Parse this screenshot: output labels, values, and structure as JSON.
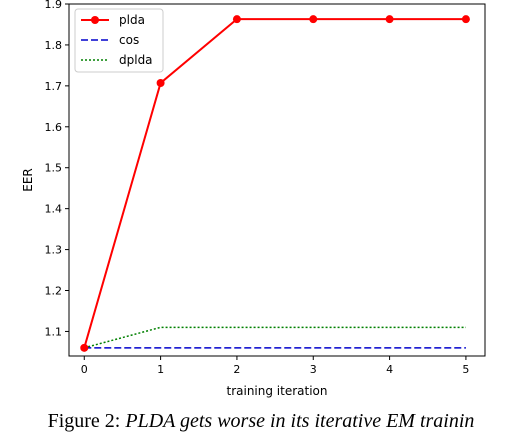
{
  "chart_data": {
    "type": "line",
    "xlabel": "training iteration",
    "ylabel": "EER",
    "x": [
      0,
      1,
      2,
      3,
      4,
      5
    ],
    "xlim": [
      -0.2,
      5.25
    ],
    "ylim": [
      1.04,
      1.9
    ],
    "xticks": [
      "0",
      "1",
      "2",
      "3",
      "4",
      "5"
    ],
    "yticks": [
      "1.1",
      "1.2",
      "1.3",
      "1.4",
      "1.5",
      "1.6",
      "1.7",
      "1.8",
      "1.9"
    ],
    "grid": false,
    "legend_position": "top-left",
    "series": [
      {
        "name": "plda",
        "values": [
          1.06,
          1.707,
          1.863,
          1.863,
          1.863,
          1.863
        ],
        "color": "#ff0000",
        "style": "solid",
        "marker": "circle"
      },
      {
        "name": "cos",
        "values": [
          1.06,
          1.06,
          1.06,
          1.06,
          1.06,
          1.06
        ],
        "color": "#0000cc",
        "style": "dashed",
        "marker": "none"
      },
      {
        "name": "dplda",
        "values": [
          1.06,
          1.11,
          1.11,
          1.11,
          1.11,
          1.11
        ],
        "color": "#008000",
        "style": "dotted",
        "marker": "none"
      }
    ]
  },
  "caption": {
    "prefix": "Figure 2: ",
    "italic": "PLDA gets worse in its iterative EM trainin"
  }
}
